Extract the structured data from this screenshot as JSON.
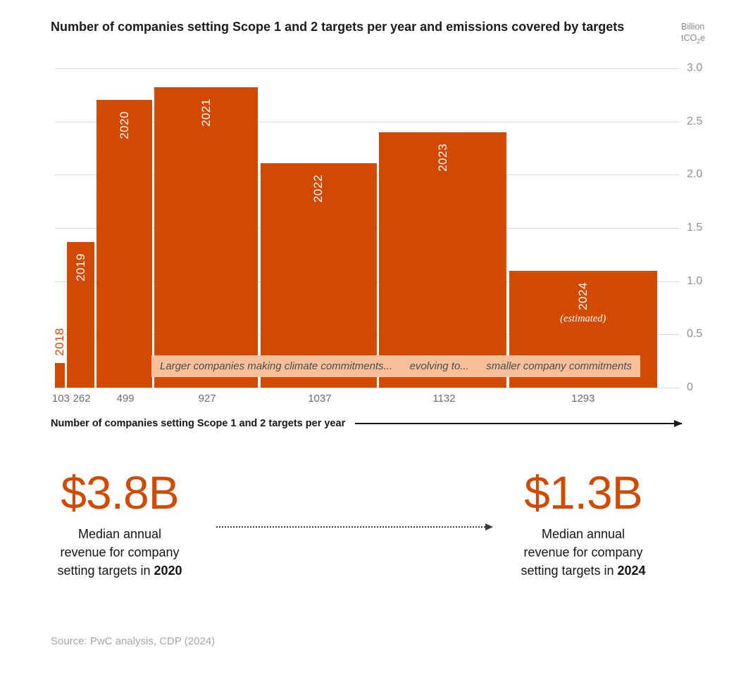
{
  "title": "Number of companies setting Scope 1 and 2 targets per year and emissions covered by targets",
  "unit": {
    "line1": "Billion",
    "line2_prefix": "tCO",
    "line2_sub": "2",
    "line2_suffix": "e"
  },
  "colors": {
    "bar": "#d04a02",
    "accent": "#d04a02",
    "banner_bg": "#f7c09b"
  },
  "chart_data": {
    "type": "bar",
    "title": "Number of companies setting Scope 1 and 2 targets per year and emissions covered by targets",
    "xlabel": "Number of companies setting Scope 1 and 2 targets per year",
    "ylabel": "Billion tCO2e",
    "ylim": [
      0,
      3.0
    ],
    "yticks": [
      "3.0",
      "2.5",
      "2.0",
      "1.5",
      "1.0",
      "0.5",
      "0"
    ],
    "grid": "horizontal",
    "bar_width_encodes": "number of companies setting targets",
    "bar_height_encodes": "emissions covered by targets, billion tCO2e",
    "bars": [
      {
        "year": "2018",
        "companies": 103,
        "emissions_btco2e": 0.23
      },
      {
        "year": "2019",
        "companies": 262,
        "emissions_btco2e": 1.37
      },
      {
        "year": "2020",
        "companies": 499,
        "emissions_btco2e": 2.7
      },
      {
        "year": "2021",
        "companies": 927,
        "emissions_btco2e": 2.82
      },
      {
        "year": "2022",
        "companies": 1037,
        "emissions_btco2e": 2.11
      },
      {
        "year": "2023",
        "companies": 1132,
        "emissions_btco2e": 2.4
      },
      {
        "year": "2024",
        "companies": 1293,
        "emissions_btco2e": 1.1,
        "note": "(estimated)"
      }
    ],
    "annotation_segments": [
      "Larger companies making climate commitments...",
      "evolving to...",
      "smaller company commitments"
    ]
  },
  "xaxis_label": "Number of companies setting Scope 1 and 2 targets per year",
  "stats": {
    "left": {
      "value": "$3.8B",
      "line1": "Median annual",
      "line2": "revenue for company",
      "line3_prefix": "setting targets in ",
      "line3_bold": "2020"
    },
    "right": {
      "value": "$1.3B",
      "line1": "Median annual",
      "line2": "revenue for company",
      "line3_prefix": "setting targets in ",
      "line3_bold": "2024"
    }
  },
  "source": "Source: PwC analysis, CDP (2024)"
}
